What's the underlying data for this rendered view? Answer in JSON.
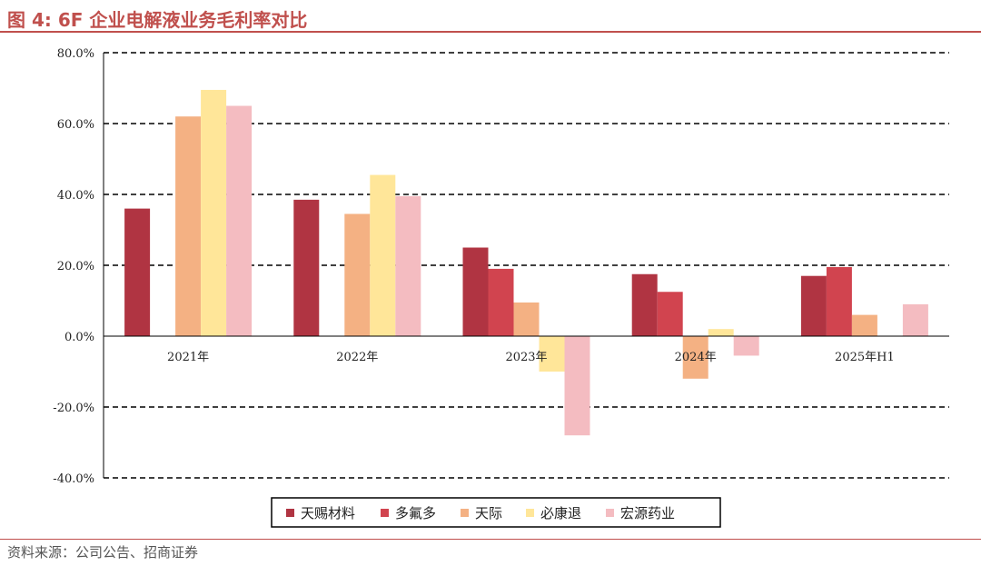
{
  "title": "图 4:  6F 企业电解液业务毛利率对比",
  "source": "资料来源：公司公告、招商证券",
  "chart_data": {
    "type": "bar",
    "categories": [
      "2021年",
      "2022年",
      "2023年",
      "2024年",
      "2025年H1"
    ],
    "series": [
      {
        "name": "天赐材料",
        "color": "#b03442",
        "values": [
          36,
          38.5,
          25,
          17.5,
          17
        ]
      },
      {
        "name": "多氟多",
        "color": "#d1444f",
        "values": [
          null,
          null,
          19,
          12.5,
          19.5
        ]
      },
      {
        "name": "天际",
        "color": "#f4b183",
        "values": [
          62,
          34.5,
          9.5,
          -12,
          6
        ]
      },
      {
        "name": "必康退",
        "color": "#ffe699",
        "values": [
          69.5,
          45.5,
          -10,
          2,
          null
        ]
      },
      {
        "name": "宏源药业",
        "color": "#f4bcc1",
        "values": [
          65,
          39.5,
          -28,
          -5.5,
          9
        ]
      }
    ],
    "ylim": [
      -40,
      80
    ],
    "yticks": [
      "-40.0%",
      "-20.0%",
      "0.0%",
      "20.0%",
      "40.0%",
      "60.0%",
      "80.0%"
    ],
    "grid": true,
    "legend": "bottom"
  }
}
